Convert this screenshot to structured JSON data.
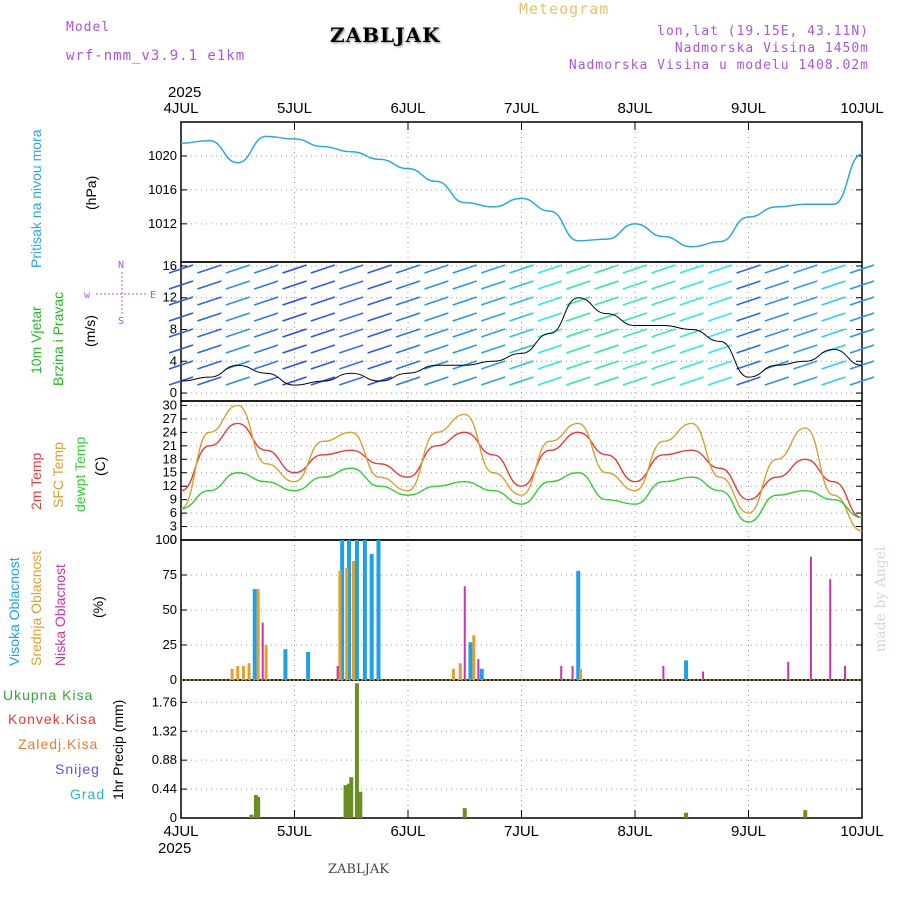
{
  "header": {
    "model_label": "Model",
    "model_name": "wrf-nmm_v3.9.1 e1km",
    "station": "ZABLJAK",
    "product": "Meteogram",
    "coords": "lon,lat (19.15E, 43.11N)",
    "altitude": "Nadmorska Visina 1450m",
    "model_altitude": "Nadmorska Visina u modelu 1408.02m"
  },
  "footer": {
    "station": "ZABLJAK",
    "credit": "made by Angel"
  },
  "time_axis": {
    "year_top": "2025",
    "year_bottom": "2025",
    "labels": [
      "4JUL",
      "5JUL",
      "6JUL",
      "7JUL",
      "8JUL",
      "9JUL",
      "10JUL"
    ]
  },
  "colors": {
    "pressure": "#29a9e0",
    "temp2m": "#e83a3a",
    "sfc_temp": "#d8a032",
    "dewpoint": "#33cc33",
    "high_cloud": "#1fa0e6",
    "mid_cloud": "#e0a030",
    "low_cloud": "#cc33aa",
    "total_precip": "#33aa33",
    "conv_precip": "#ee3333",
    "frozen_precip": "#ee7733",
    "snow": "#5555ee",
    "hail": "#22bbbb",
    "precip_bar": "#6b8e23",
    "wind_label": "#22bb22",
    "direction_legend": "#aa55dd",
    "wind_speed": "#000000"
  },
  "chart_data": [
    {
      "type": "line",
      "panel": "pressure",
      "legend": [
        "Pritisak na nivou mora"
      ],
      "ylabel": "(hPa)",
      "yticks": [
        "1012",
        "1016",
        "1020"
      ],
      "ylim": [
        1007.5,
        1024
      ],
      "x": [
        0,
        0.25,
        0.5,
        0.75,
        1,
        1.25,
        1.5,
        1.75,
        2,
        2.25,
        2.5,
        2.75,
        3,
        3.25,
        3.5,
        3.75,
        4,
        4.25,
        4.5,
        4.75,
        5,
        5.25,
        5.5,
        5.75,
        6
      ],
      "values": [
        1021.5,
        1021.8,
        1019.2,
        1022.3,
        1022.0,
        1021.1,
        1020.5,
        1019.6,
        1018.5,
        1017.0,
        1014.5,
        1014.0,
        1015.0,
        1013.5,
        1010.0,
        1010.2,
        1012.0,
        1010.5,
        1009.3,
        1009.9,
        1012.8,
        1014.0,
        1014.3,
        1014.3,
        1020.2
      ]
    },
    {
      "type": "line",
      "panel": "wind",
      "legend": [
        "10m Vjetar",
        "Brzina i Pravac"
      ],
      "ylabel": "(m/s)",
      "direction_legend": [
        "N",
        "w",
        "E",
        "S"
      ],
      "yticks": [
        "0",
        "4",
        "8",
        "12",
        "16"
      ],
      "ylim": [
        -1,
        16.5
      ],
      "x": [
        0,
        0.25,
        0.5,
        0.75,
        1,
        1.25,
        1.5,
        1.75,
        2,
        2.25,
        2.5,
        2.75,
        3,
        3.25,
        3.5,
        3.75,
        4,
        4.25,
        4.5,
        4.75,
        5,
        5.25,
        5.5,
        5.75,
        6
      ],
      "values": [
        1.5,
        2.0,
        3.5,
        2.5,
        1.0,
        1.5,
        2.5,
        1.5,
        2.5,
        3.5,
        3.5,
        4.0,
        5.0,
        7.5,
        12.0,
        10.0,
        8.5,
        8.5,
        8.0,
        6.5,
        2.0,
        3.5,
        4.0,
        5.5,
        3.5
      ]
    },
    {
      "type": "line",
      "panel": "temperature",
      "legend": [
        "2m Temp",
        "SFC Temp",
        "dewpt Temp"
      ],
      "ylabel": "(C)",
      "yticks": [
        "0",
        "3",
        "6",
        "9",
        "12",
        "15",
        "18",
        "21",
        "24",
        "27",
        "30"
      ],
      "ylim": [
        0,
        31
      ],
      "x": [
        0,
        0.25,
        0.5,
        0.75,
        1,
        1.25,
        1.5,
        1.75,
        2,
        2.25,
        2.5,
        2.75,
        3,
        3.25,
        3.5,
        3.75,
        4,
        4.25,
        4.5,
        4.75,
        5,
        5.25,
        5.5,
        5.75,
        6
      ],
      "series": [
        {
          "name": "2m Temp",
          "values": [
            11,
            21,
            26,
            20,
            15,
            19,
            20,
            17,
            14,
            21,
            24,
            19,
            12,
            20,
            24,
            19,
            13,
            19,
            20,
            16,
            9,
            14,
            18,
            13,
            5
          ]
        },
        {
          "name": "SFC Temp",
          "values": [
            7,
            24,
            30,
            17,
            13,
            22,
            24,
            14,
            11,
            24,
            28,
            15,
            10,
            22,
            26,
            15,
            11,
            22,
            26,
            14,
            6,
            18,
            25,
            10,
            2
          ]
        },
        {
          "name": "dewpt Temp",
          "values": [
            7,
            11,
            15,
            13,
            11,
            14,
            16,
            12,
            10,
            12,
            13,
            11,
            8,
            13,
            15,
            9,
            8,
            13,
            14,
            11,
            4,
            10,
            11,
            9,
            5
          ]
        }
      ]
    },
    {
      "type": "bar",
      "panel": "clouds",
      "legend": [
        "Visoka Oblacnost",
        "Srednja Oblacnost",
        "Niska Oblacnost"
      ],
      "ylabel": "(%)",
      "yticks": [
        "0",
        "25",
        "50",
        "75",
        "100"
      ],
      "ylim": [
        0,
        100
      ],
      "series": [
        {
          "name": "Visoka Oblacnost",
          "points": [
            [
              0.65,
              65
            ],
            [
              0.92,
              22
            ],
            [
              1.12,
              20
            ],
            [
              1.42,
              100
            ],
            [
              1.48,
              100
            ],
            [
              1.55,
              100
            ],
            [
              1.62,
              100
            ],
            [
              1.68,
              90
            ],
            [
              1.74,
              100
            ],
            [
              2.55,
              27
            ],
            [
              2.65,
              8
            ],
            [
              3.5,
              78
            ],
            [
              4.45,
              14
            ]
          ]
        },
        {
          "name": "Srednja Oblacnost",
          "points": [
            [
              0.45,
              8
            ],
            [
              0.5,
              10
            ],
            [
              0.55,
              10
            ],
            [
              0.6,
              12
            ],
            [
              0.68,
              65
            ],
            [
              0.75,
              25
            ],
            [
              1.4,
              78
            ],
            [
              1.46,
              80
            ],
            [
              1.52,
              85
            ],
            [
              2.4,
              8
            ],
            [
              2.46,
              12
            ],
            [
              2.58,
              32
            ],
            [
              3.52,
              8
            ]
          ]
        },
        {
          "name": "Niska Oblacnost",
          "points": [
            [
              0.72,
              41
            ],
            [
              1.38,
              10
            ],
            [
              2.5,
              67
            ],
            [
              2.62,
              15
            ],
            [
              3.35,
              10
            ],
            [
              3.45,
              10
            ],
            [
              4.25,
              10
            ],
            [
              4.6,
              6
            ],
            [
              5.35,
              13
            ],
            [
              5.55,
              88
            ],
            [
              5.72,
              72
            ],
            [
              5.85,
              10
            ]
          ]
        }
      ]
    },
    {
      "type": "bar",
      "panel": "precipitation",
      "legend": [
        "Ukupna Kisa",
        "Konvek.Kisa",
        "Zaledj.Kisa",
        "Snijeg",
        "Grad"
      ],
      "ylabel": "1hr Precip (mm)",
      "yticks": [
        "0",
        "0.44",
        "0.88",
        "1.32",
        "1.76"
      ],
      "ylim": [
        0,
        2.1
      ],
      "series": [
        {
          "name": "Ukupna Kisa",
          "points": [
            [
              0.62,
              0.05
            ],
            [
              0.66,
              0.35
            ],
            [
              0.68,
              0.32
            ],
            [
              1.45,
              0.5
            ],
            [
              1.48,
              0.52
            ],
            [
              1.5,
              0.62
            ],
            [
              1.55,
              2.05
            ],
            [
              1.58,
              0.4
            ],
            [
              2.5,
              0.15
            ],
            [
              4.45,
              0.08
            ],
            [
              5.5,
              0.12
            ]
          ]
        }
      ]
    }
  ]
}
